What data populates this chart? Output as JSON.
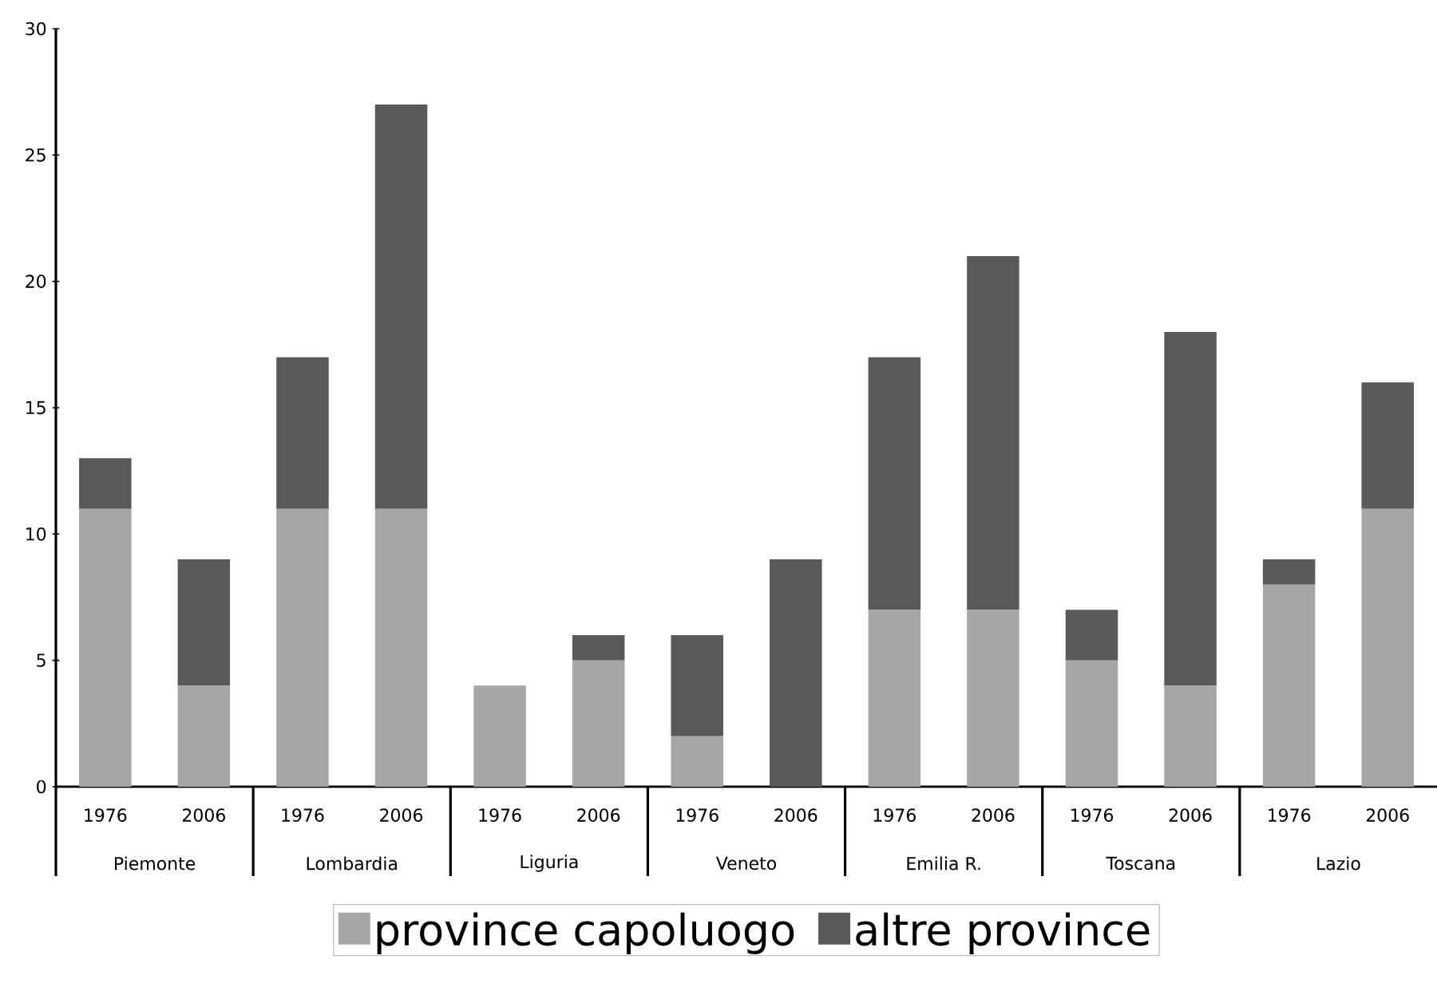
{
  "chart_data": {
    "type": "bar",
    "stacked": true,
    "categories": [
      "1976",
      "2006",
      "1976",
      "2006",
      "1976",
      "2006",
      "1976",
      "2006",
      "1976",
      "2006",
      "1976",
      "2006",
      "1976",
      "2006"
    ],
    "series": [
      {
        "name": "province capoluogo",
        "color": "#a6a6a6",
        "values": [
          11,
          4,
          11,
          11,
          4,
          5,
          2,
          0,
          7,
          7,
          5,
          4,
          8,
          11
        ]
      },
      {
        "name": "altre province",
        "color": "#595959",
        "values": [
          2,
          5,
          6,
          16,
          0,
          1,
          4,
          9,
          10,
          14,
          2,
          14,
          1,
          5
        ]
      }
    ],
    "annotations": [
      "Piemonte",
      "Lombardia",
      "Liguria",
      "Veneto",
      "Emilia R.",
      "Toscana",
      "Lazio"
    ],
    "ylim": [
      0,
      30
    ],
    "yticks": [
      0,
      5,
      10,
      15,
      20,
      25,
      30
    ],
    "grid": false,
    "legend": "bottom"
  }
}
